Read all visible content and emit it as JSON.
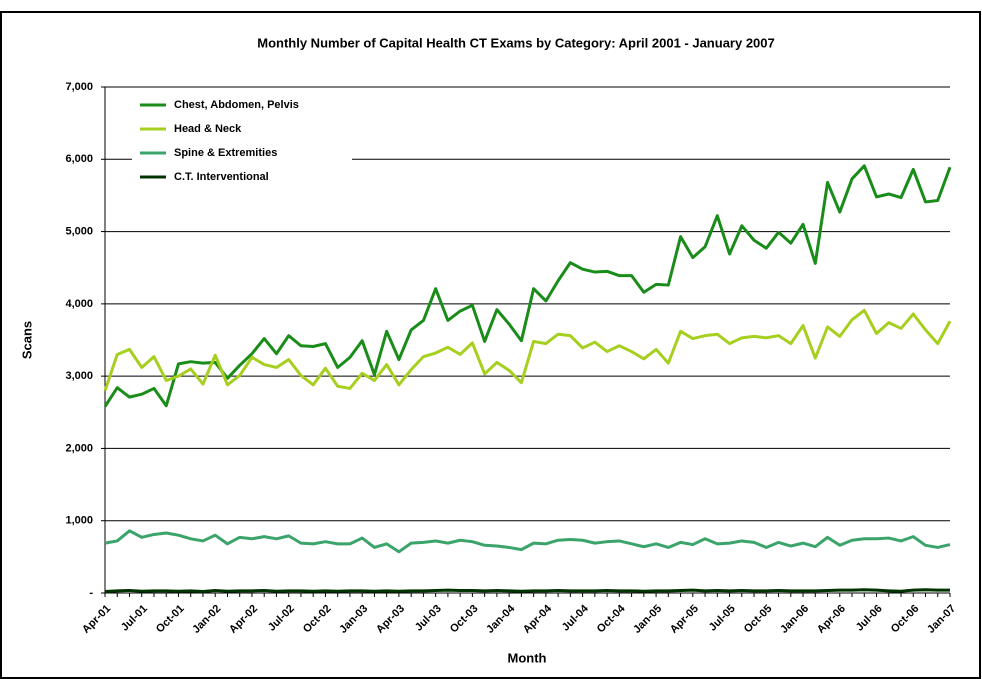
{
  "chart_data": {
    "type": "line",
    "title": "Monthly Number of Capital Health CT Exams by Category: April 2001 - January 2007",
    "x_label": "Month",
    "y_label": "Scans",
    "categories": [
      "Apr-01",
      null,
      null,
      "Jul-01",
      null,
      null,
      "Oct-01",
      null,
      null,
      "Jan-02",
      null,
      null,
      "Apr-02",
      null,
      null,
      "Jul-02",
      null,
      null,
      "Oct-02",
      null,
      null,
      "Jan-03",
      null,
      null,
      "Apr-03",
      null,
      null,
      "Jul-03",
      null,
      null,
      "Oct-03",
      null,
      null,
      "Jan-04",
      null,
      null,
      "Apr-04",
      null,
      null,
      "Jul-04",
      null,
      null,
      "Oct-04",
      null,
      null,
      "Jan-05",
      null,
      null,
      "Apr-05",
      null,
      null,
      "Jul-05",
      null,
      null,
      "Oct-05",
      null,
      null,
      "Jan-06",
      null,
      null,
      "Apr-06",
      null,
      null,
      "Jul-06",
      null,
      null,
      "Oct-06",
      null,
      null,
      "Jan-07"
    ],
    "series": [
      {
        "name": "Chest, Abdomen, Pelvis",
        "color": "#1a8c1a",
        "values": [
          2580,
          2840,
          2710,
          2750,
          2830,
          2590,
          3170,
          3200,
          3180,
          3190,
          2970,
          3150,
          3310,
          3520,
          3310,
          3560,
          3420,
          3410,
          3450,
          3120,
          3260,
          3490,
          3020,
          3620,
          3230,
          3640,
          3770,
          4210,
          3770,
          3900,
          3980,
          3480,
          3920,
          3720,
          3490,
          4210,
          4040,
          4320,
          4570,
          4480,
          4440,
          4450,
          4390,
          4390,
          4160,
          4270,
          4260,
          4930,
          4640,
          4790,
          5220,
          4690,
          5080,
          4880,
          4770,
          4990,
          4840,
          5100,
          4560,
          5680,
          5270,
          5730,
          5910,
          5480,
          5520,
          5470,
          5860,
          5410,
          5430,
          5890
        ]
      },
      {
        "name": "Head & Neck",
        "color": "#a6cf1f",
        "values": [
          2800,
          3300,
          3370,
          3120,
          3270,
          2940,
          3000,
          3100,
          2890,
          3290,
          2880,
          3010,
          3260,
          3160,
          3120,
          3230,
          3010,
          2880,
          3110,
          2860,
          2830,
          3040,
          2940,
          3160,
          2880,
          3090,
          3270,
          3320,
          3400,
          3300,
          3460,
          3030,
          3190,
          3080,
          2910,
          3480,
          3450,
          3580,
          3560,
          3390,
          3470,
          3340,
          3420,
          3340,
          3240,
          3370,
          3180,
          3620,
          3520,
          3560,
          3580,
          3450,
          3530,
          3550,
          3530,
          3560,
          3450,
          3700,
          3250,
          3680,
          3550,
          3780,
          3910,
          3590,
          3740,
          3660,
          3860,
          3640,
          3450,
          3760
        ]
      },
      {
        "name": "Spine & Extremities",
        "color": "#3aa46a",
        "values": [
          690,
          720,
          860,
          770,
          810,
          830,
          800,
          750,
          720,
          800,
          680,
          770,
          750,
          780,
          750,
          790,
          690,
          680,
          710,
          680,
          680,
          760,
          630,
          680,
          570,
          690,
          700,
          720,
          690,
          730,
          710,
          660,
          650,
          630,
          600,
          690,
          680,
          730,
          740,
          730,
          690,
          710,
          720,
          680,
          640,
          680,
          630,
          700,
          670,
          750,
          680,
          690,
          720,
          700,
          630,
          700,
          650,
          690,
          640,
          770,
          660,
          730,
          750,
          750,
          760,
          720,
          780,
          660,
          630,
          670
        ]
      },
      {
        "name": "C.T. Interventional",
        "color": "#003300",
        "values": [
          20,
          30,
          35,
          25,
          30,
          30,
          25,
          30,
          20,
          35,
          25,
          30,
          30,
          35,
          25,
          30,
          30,
          25,
          30,
          25,
          30,
          30,
          25,
          30,
          25,
          30,
          30,
          35,
          40,
          35,
          35,
          30,
          35,
          30,
          25,
          30,
          30,
          35,
          30,
          30,
          30,
          35,
          30,
          30,
          25,
          30,
          30,
          35,
          40,
          30,
          35,
          30,
          35,
          30,
          30,
          35,
          30,
          30,
          30,
          35,
          40,
          40,
          45,
          40,
          30,
          25,
          40,
          45,
          40,
          40
        ]
      }
    ],
    "ylim": [
      0,
      7000
    ],
    "yticks": [
      {
        "value": 0,
        "label": "-"
      },
      {
        "value": 1000,
        "label": "1,000"
      },
      {
        "value": 2000,
        "label": "2,000"
      },
      {
        "value": 3000,
        "label": "3,000"
      },
      {
        "value": 4000,
        "label": "4,000"
      },
      {
        "value": 5000,
        "label": "5,000"
      },
      {
        "value": 6000,
        "label": "6,000"
      },
      {
        "value": 7000,
        "label": "7,000"
      }
    ],
    "grid": true,
    "legend": "upper-left"
  }
}
